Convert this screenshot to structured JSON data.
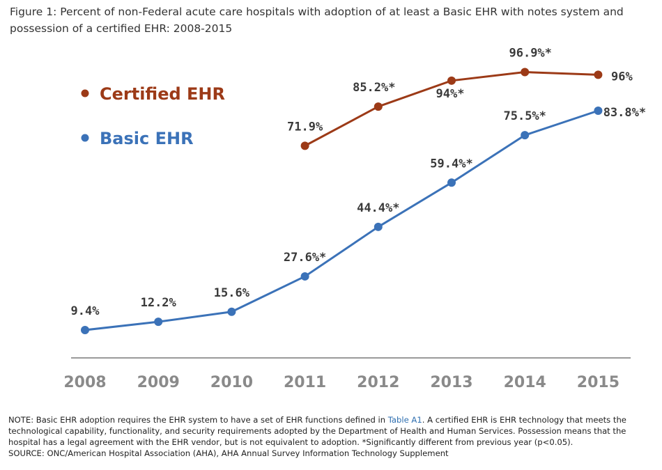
{
  "title": "Figure 1: Percent of non-Federal acute care hospitals with adoption of at least a Basic EHR with notes system and possession of a certified EHR: 2008-2015",
  "note": {
    "text_before_link": "NOTE: Basic EHR adoption requires the EHR system to have a set of EHR functions defined in ",
    "link_text": "Table A1",
    "text_after_link": ". A certified EHR is EHR technology that meets the technological capability, functionality, and security requirements adopted by the Department of Health and Human Services. Possession means that the hospital has a legal agreement with the EHR vendor, but is not equivalent to adoption. *Significantly different from previous year (p<0.05).",
    "source": "SOURCE: ONC/American Hospital Association (AHA), AHA Annual Survey Information Technology Supplement"
  },
  "colors": {
    "certified": "#9c3a17",
    "basic": "#3b72b8",
    "axis": "#9a9a9a",
    "tick": "#8a8a8a"
  },
  "chart_data": {
    "type": "line",
    "categories": [
      "2008",
      "2009",
      "2010",
      "2011",
      "2012",
      "2013",
      "2014",
      "2015"
    ],
    "series": [
      {
        "name": "Certified EHR",
        "values": [
          null,
          null,
          null,
          71.9,
          85.2,
          94,
          96.9,
          96
        ],
        "labels": [
          null,
          null,
          null,
          "71.9%",
          "85.2%*",
          "94%*",
          "96.9%*",
          "96%"
        ]
      },
      {
        "name": "Basic EHR",
        "values": [
          9.4,
          12.2,
          15.6,
          27.6,
          44.4,
          59.4,
          75.5,
          83.8
        ],
        "labels": [
          "9.4%",
          "12.2%",
          "15.6%",
          "27.6%*",
          "44.4%*",
          "59.4%*",
          "75.5%*",
          "83.8%*"
        ]
      }
    ],
    "legend": [
      "Certified EHR",
      "Basic EHR"
    ],
    "legend_position": "top-left"
  }
}
